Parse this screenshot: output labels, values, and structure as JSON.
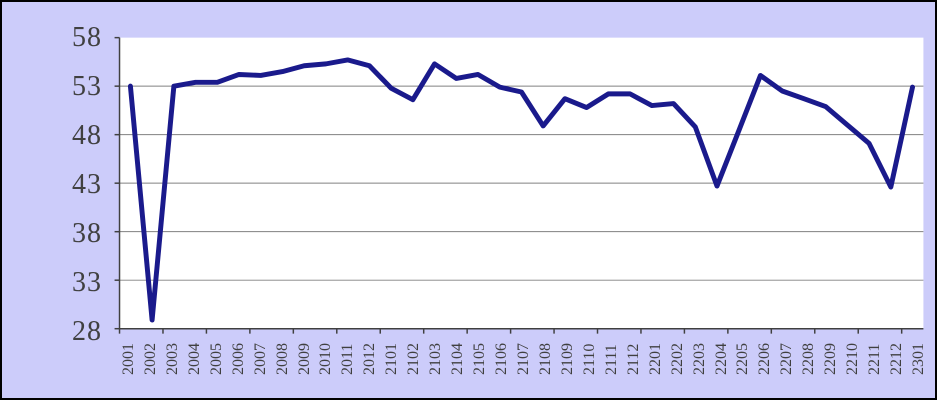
{
  "window": {
    "title": "",
    "background_color": "#ccccfa",
    "border_color": "#000000"
  },
  "chart_data": {
    "type": "line",
    "title": "",
    "xlabel": "",
    "ylabel": "",
    "legend": "none",
    "grid": "horizontal",
    "categories": [
      "2001",
      "2002",
      "2003",
      "2004",
      "2005",
      "2006",
      "2007",
      "2008",
      "2009",
      "2010",
      "2011",
      "2012",
      "2101",
      "2102",
      "2103",
      "2104",
      "2105",
      "2106",
      "2107",
      "2108",
      "2109",
      "2110",
      "2111",
      "2112",
      "2201",
      "2202",
      "2203",
      "2204",
      "2205",
      "2206",
      "2207",
      "2208",
      "2209",
      "2210",
      "2211",
      "2212",
      "2301"
    ],
    "values": [
      53.0,
      28.9,
      53.0,
      53.4,
      53.4,
      54.2,
      54.1,
      54.5,
      55.1,
      55.3,
      55.7,
      55.1,
      52.8,
      51.6,
      55.3,
      53.8,
      54.2,
      52.9,
      52.4,
      48.9,
      51.7,
      50.8,
      52.2,
      52.2,
      51.0,
      51.2,
      48.8,
      42.7,
      48.4,
      54.1,
      52.5,
      51.7,
      50.9,
      49.0,
      47.1,
      42.6,
      52.9
    ],
    "yticks": [
      28,
      33,
      38,
      43,
      48,
      53,
      58
    ],
    "ylim": [
      28,
      58
    ],
    "colors": {
      "line": "#1a1a8c",
      "plot_background": "#ffffff",
      "gridline": "#808080",
      "axis": "#404040",
      "tick": "#404040",
      "label": "#404040",
      "chart_background": "#ccccfa"
    }
  }
}
